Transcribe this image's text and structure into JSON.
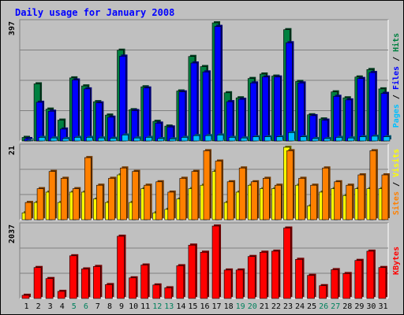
{
  "title": "Daily usage for January 2008",
  "colors": {
    "background": "#c0c0c0",
    "title": "#0000ff",
    "hits": "#008040",
    "files": "#0000ff",
    "pages": "#00c0ff",
    "visits": "#ffff00",
    "sites": "#ff8000",
    "kbytes": "#ff0000",
    "weekend_label": "#00805c"
  },
  "chart_data": [
    {
      "type": "bar",
      "title": "Daily usage for January 2008",
      "ymax_label": "397",
      "ylim": [
        0,
        397
      ],
      "legend": [
        {
          "name": "Hits",
          "color": "#008040"
        },
        {
          "name": "Files",
          "color": "#0000ff"
        },
        {
          "name": "Pages",
          "color": "#00c0ff"
        }
      ],
      "legend_separator": " / ",
      "categories": [
        "1",
        "2",
        "3",
        "4",
        "5",
        "6",
        "7",
        "8",
        "9",
        "10",
        "11",
        "12",
        "13",
        "14",
        "15",
        "16",
        "17",
        "18",
        "19",
        "20",
        "21",
        "22",
        "23",
        "24",
        "25",
        "26",
        "27",
        "28",
        "29",
        "30",
        "31"
      ],
      "series": [
        {
          "name": "Hits",
          "color": "#008040",
          "values": [
            12,
            192,
            107,
            70,
            212,
            185,
            132,
            87,
            305,
            105,
            182,
            66,
            50,
            168,
            284,
            250,
            397,
            162,
            145,
            210,
            225,
            218,
            374,
            200,
            88,
            74,
            165,
            145,
            215,
            240,
            175
          ]
        },
        {
          "name": "Files",
          "color": "#0000ff",
          "values": [
            8,
            130,
            100,
            40,
            205,
            175,
            128,
            80,
            285,
            102,
            178,
            60,
            47,
            165,
            262,
            232,
            385,
            132,
            140,
            195,
            215,
            215,
            330,
            195,
            85,
            70,
            150,
            138,
            210,
            230,
            160
          ]
        },
        {
          "name": "Pages",
          "color": "#00c0ff",
          "values": [
            2,
            12,
            10,
            8,
            12,
            12,
            10,
            9,
            20,
            10,
            12,
            8,
            7,
            12,
            18,
            18,
            20,
            12,
            10,
            14,
            14,
            14,
            28,
            14,
            8,
            8,
            12,
            10,
            14,
            16,
            14
          ]
        }
      ]
    },
    {
      "type": "bar",
      "ymax_label": "21",
      "ylim": [
        0,
        21
      ],
      "legend": [
        {
          "name": "Visits",
          "color": "#ffff00"
        },
        {
          "name": "Sites",
          "color": "#ff8000"
        }
      ],
      "legend_separator": " / ",
      "categories": [
        "1",
        "2",
        "3",
        "4",
        "5",
        "6",
        "7",
        "8",
        "9",
        "10",
        "11",
        "12",
        "13",
        "14",
        "15",
        "16",
        "17",
        "18",
        "19",
        "20",
        "21",
        "22",
        "23",
        "24",
        "25",
        "26",
        "27",
        "28",
        "29",
        "30",
        "31"
      ],
      "series": [
        {
          "name": "Visits",
          "color": "#ffff00",
          "values": [
            2,
            5,
            8,
            5,
            8,
            8,
            6,
            5,
            13,
            5,
            9,
            2,
            3,
            6,
            9,
            10,
            14,
            5,
            8,
            10,
            9,
            9,
            21,
            10,
            4,
            8,
            9,
            7,
            9,
            9,
            9
          ]
        },
        {
          "name": "Sites",
          "color": "#ff8000",
          "values": [
            5,
            9,
            14,
            12,
            9,
            18,
            10,
            12,
            15,
            14,
            10,
            11,
            8,
            12,
            14,
            20,
            17,
            11,
            15,
            11,
            12,
            10,
            20,
            12,
            10,
            15,
            11,
            10,
            13,
            20,
            13
          ]
        }
      ]
    },
    {
      "type": "bar",
      "ymax_label": "2037",
      "ylim": [
        0,
        2037
      ],
      "legend": [
        {
          "name": "KBytes",
          "color": "#ff0000"
        }
      ],
      "categories": [
        "1",
        "2",
        "3",
        "4",
        "5",
        "6",
        "7",
        "8",
        "9",
        "10",
        "11",
        "12",
        "13",
        "14",
        "15",
        "16",
        "17",
        "18",
        "19",
        "20",
        "21",
        "22",
        "23",
        "24",
        "25",
        "26",
        "27",
        "28",
        "29",
        "30",
        "31"
      ],
      "weekend_days": [
        "5",
        "6",
        "12",
        "13",
        "19",
        "20",
        "26",
        "27"
      ],
      "series": [
        {
          "name": "KBytes",
          "color": "#ff0000",
          "values": [
            90,
            870,
            560,
            200,
            1200,
            830,
            900,
            390,
            1750,
            580,
            940,
            380,
            300,
            920,
            1500,
            1300,
            2037,
            800,
            800,
            1180,
            1300,
            1330,
            1980,
            1100,
            650,
            360,
            810,
            700,
            1070,
            1330,
            870
          ]
        }
      ]
    }
  ]
}
